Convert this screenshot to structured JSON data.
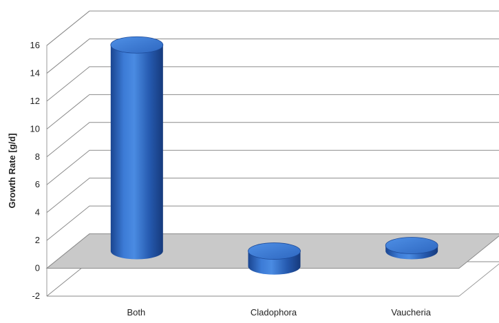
{
  "chart_data": {
    "type": "bar",
    "style": "3d-cylinder",
    "categories": [
      "Both",
      "Cladophora",
      "Vaucheria"
    ],
    "values": [
      14.8,
      -1.1,
      0.4
    ],
    "ylabel": "Growth Rate [g/d]",
    "xlabel": "",
    "ylim": [
      -2,
      16
    ],
    "yticks": [
      "-2",
      "0",
      "2",
      "4",
      "6",
      "8",
      "10",
      "12",
      "14",
      "16"
    ],
    "grid": true,
    "legend": "none",
    "bar_color": "#2a62b8"
  }
}
